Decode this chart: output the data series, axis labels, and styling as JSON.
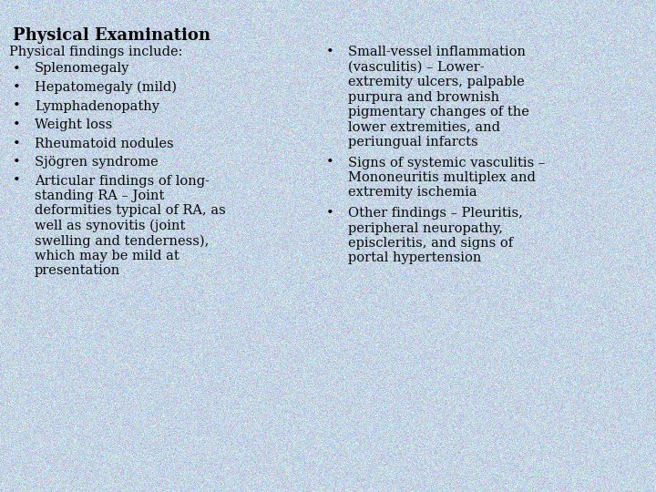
{
  "title": "Physical Examination",
  "bg_color": "#c5d5e5",
  "text_color": "#0a0a0a",
  "title_fontsize": 13,
  "body_fontsize": 10.5,
  "left_header": "Physical findings include:",
  "left_bullets": [
    "Splenomegaly",
    "Hepatomegaly (mild)",
    "Lymphadenopathy",
    "Weight loss",
    "Rheumatoid nodules",
    "Sjögren syndrome",
    "Articular findings of long-\nstanding RA – Joint\ndeformities typical of RA, as\nwell as synovitis (joint\nswelling and tenderness),\nwhich may be mild at\npresentation"
  ],
  "right_bullets": [
    "Small-vessel inflammation\n(vasculitis) – Lower-\nextremity ulcers, palpable\npurpura and brownish\npigmentary changes of the\nlower extremities, and\nperiungual infarcts",
    "Signs of systemic vasculitis –\nMononeuritis multiplex and\nextremity ischemia",
    "Other findings – Pleuritis,\nperipheral neuropathy,\nepiscleritis, and signs of\nportal hypertension"
  ],
  "noise_alpha": 0.18,
  "fig_width": 7.2,
  "fig_height": 5.4,
  "dpi": 100
}
